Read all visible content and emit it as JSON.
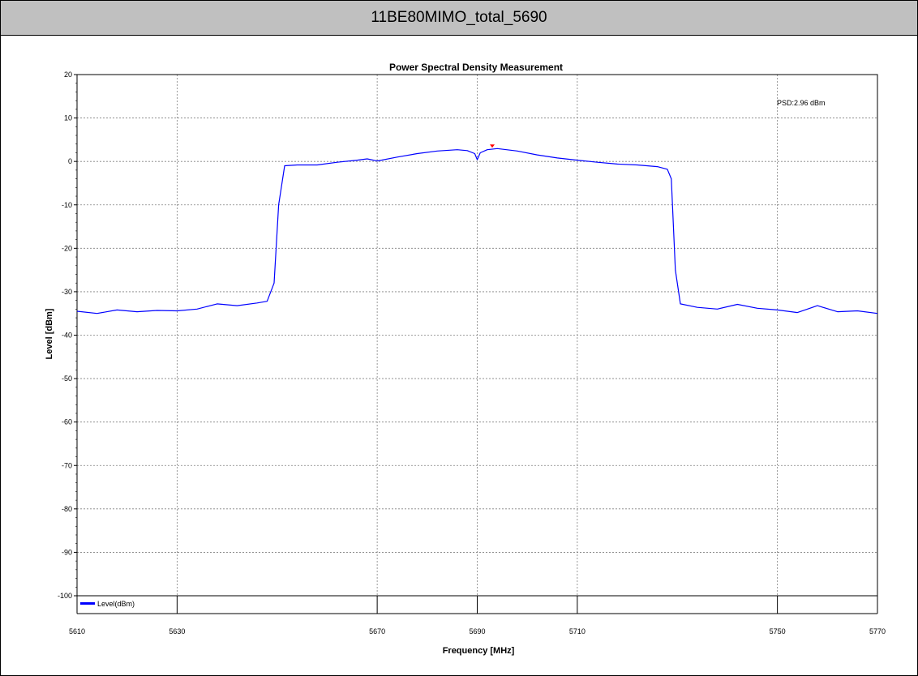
{
  "header": {
    "title": "11BE80MIMO_total_5690"
  },
  "chart_data": {
    "type": "line",
    "title": "Power Spectral Density Measurement",
    "xlabel": "Frequency [MHz]",
    "ylabel": "Level [dBm]",
    "xlim": [
      5610,
      5770
    ],
    "ylim": [
      -100,
      20
    ],
    "xticks": [
      5610,
      5630,
      5670,
      5690,
      5710,
      5750,
      5770
    ],
    "yticks": [
      20,
      10,
      0,
      -10,
      -20,
      -30,
      -40,
      -50,
      -60,
      -70,
      -80,
      -90,
      -100
    ],
    "grid": true,
    "legend": "bottom-left",
    "series": [
      {
        "name": "Level(dBm)",
        "color": "#0000ff",
        "x": [
          5610,
          5614,
          5618,
          5622,
          5626,
          5630,
          5634,
          5638,
          5642,
          5646,
          5648,
          5649.4,
          5650.3,
          5651.5,
          5654,
          5658,
          5662,
          5666,
          5668,
          5670,
          5674,
          5678,
          5682,
          5686,
          5688,
          5689.5,
          5690,
          5690.6,
          5692,
          5694,
          5698,
          5702,
          5706,
          5710,
          5714,
          5718,
          5722,
          5726,
          5728,
          5728.8,
          5729.6,
          5730.6,
          5734,
          5738,
          5742,
          5746,
          5750,
          5754,
          5758,
          5762,
          5766,
          5770
        ],
        "values": [
          -34.5,
          -35.0,
          -34.2,
          -34.6,
          -34.3,
          -34.4,
          -34.0,
          -32.8,
          -33.2,
          -32.6,
          -32.2,
          -28,
          -10,
          -1.0,
          -0.8,
          -0.8,
          -0.2,
          0.3,
          0.6,
          0.1,
          1.0,
          1.8,
          2.4,
          2.7,
          2.5,
          1.8,
          0.4,
          2.0,
          2.7,
          2.96,
          2.4,
          1.5,
          0.8,
          0.3,
          -0.2,
          -0.6,
          -0.8,
          -1.2,
          -1.8,
          -4,
          -25,
          -32.8,
          -33.6,
          -34.0,
          -32.9,
          -33.8,
          -34.2,
          -34.8,
          -33.2,
          -34.6,
          -34.4,
          -35.0
        ]
      }
    ],
    "marker": {
      "x": 5693,
      "y": 2.96,
      "color": "#ff0000"
    },
    "annotation": "PSD:2.96 dBm"
  }
}
